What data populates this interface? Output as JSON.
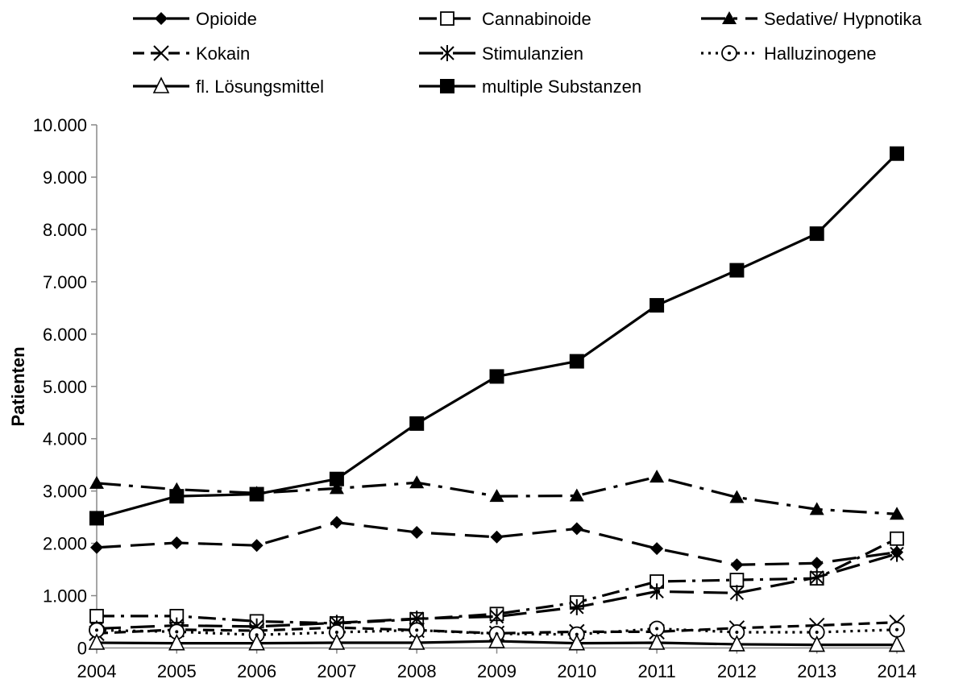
{
  "chart_data": {
    "type": "line",
    "ylabel": "Patienten",
    "xlabel": "",
    "ylim": [
      0,
      10000
    ],
    "yticks": [
      0,
      1000,
      2000,
      3000,
      4000,
      5000,
      6000,
      7000,
      8000,
      9000,
      10000
    ],
    "ytick_labels": [
      "0",
      "1.000",
      "2.000",
      "3.000",
      "4.000",
      "5.000",
      "6.000",
      "7.000",
      "8.000",
      "9.000",
      "10.000"
    ],
    "categories": [
      "2004",
      "2005",
      "2006",
      "2007",
      "2008",
      "2009",
      "2010",
      "2011",
      "2012",
      "2013",
      "2014"
    ],
    "grid": false,
    "legend_position": "top",
    "series": [
      {
        "name": "Opioide",
        "marker": "diamond",
        "dash": "long-dash",
        "values": [
          1920,
          2010,
          1960,
          2400,
          2210,
          2120,
          2280,
          1900,
          1590,
          1620,
          1830
        ]
      },
      {
        "name": "Cannabinoide",
        "marker": "open-square",
        "dash": "dash-dot",
        "values": [
          610,
          610,
          510,
          470,
          550,
          650,
          870,
          1270,
          1300,
          1330,
          2090
        ]
      },
      {
        "name": "Sedative/ Hypnotika",
        "marker": "triangle",
        "dash": "long-dash-dot",
        "values": [
          3150,
          3030,
          2960,
          3050,
          3160,
          2900,
          2910,
          3270,
          2880,
          2650,
          2560
        ]
      },
      {
        "name": "Kokain",
        "marker": "x",
        "dash": "dash",
        "values": [
          280,
          350,
          330,
          390,
          340,
          280,
          310,
          310,
          380,
          430,
          490
        ]
      },
      {
        "name": "Stimulanzien",
        "marker": "star",
        "dash": "long-dash",
        "values": [
          370,
          430,
          410,
          480,
          560,
          600,
          780,
          1080,
          1050,
          1350,
          1800
        ]
      },
      {
        "name": "Halluzinogene",
        "marker": "open-circle",
        "dash": "dot",
        "values": [
          340,
          310,
          250,
          300,
          340,
          270,
          260,
          370,
          300,
          300,
          350
        ]
      },
      {
        "name": "fl. Lösungsmittel",
        "marker": "open-triangle",
        "dash": "solid",
        "values": [
          100,
          90,
          90,
          100,
          100,
          130,
          90,
          100,
          70,
          60,
          60
        ]
      },
      {
        "name": "multiple Substanzen",
        "marker": "square",
        "dash": "solid",
        "values": [
          2480,
          2900,
          2940,
          3230,
          4290,
          5190,
          5480,
          6550,
          7220,
          7920,
          9450
        ]
      }
    ]
  }
}
